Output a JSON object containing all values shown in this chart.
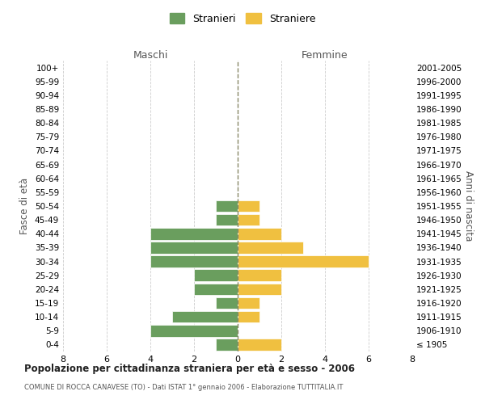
{
  "age_groups": [
    "100+",
    "95-99",
    "90-94",
    "85-89",
    "80-84",
    "75-79",
    "70-74",
    "65-69",
    "60-64",
    "55-59",
    "50-54",
    "45-49",
    "40-44",
    "35-39",
    "30-34",
    "25-29",
    "20-24",
    "15-19",
    "10-14",
    "5-9",
    "0-4"
  ],
  "birth_years": [
    "≤ 1905",
    "1906-1910",
    "1911-1915",
    "1916-1920",
    "1921-1925",
    "1926-1930",
    "1931-1935",
    "1936-1940",
    "1941-1945",
    "1946-1950",
    "1951-1955",
    "1956-1960",
    "1961-1965",
    "1966-1970",
    "1971-1975",
    "1976-1980",
    "1981-1985",
    "1986-1990",
    "1991-1995",
    "1996-2000",
    "2001-2005"
  ],
  "males": [
    0,
    0,
    0,
    0,
    0,
    0,
    0,
    0,
    0,
    0,
    1,
    1,
    4,
    4,
    4,
    2,
    2,
    1,
    3,
    4,
    1
  ],
  "females": [
    0,
    0,
    0,
    0,
    0,
    0,
    0,
    0,
    0,
    0,
    1,
    1,
    2,
    3,
    6,
    2,
    2,
    1,
    1,
    0,
    2
  ],
  "male_color": "#6a9e5e",
  "female_color": "#f0c040",
  "male_label": "Stranieri",
  "female_label": "Straniere",
  "title": "Popolazione per cittadinanza straniera per età e sesso - 2006",
  "subtitle": "COMUNE DI ROCCA CANAVESE (TO) - Dati ISTAT 1° gennaio 2006 - Elaborazione TUTTITALIA.IT",
  "xlabel_left": "Maschi",
  "xlabel_right": "Femmine",
  "ylabel_left": "Fasce di età",
  "ylabel_right": "Anni di nascita",
  "xlim": 8,
  "background_color": "#ffffff",
  "grid_color": "#cccccc"
}
